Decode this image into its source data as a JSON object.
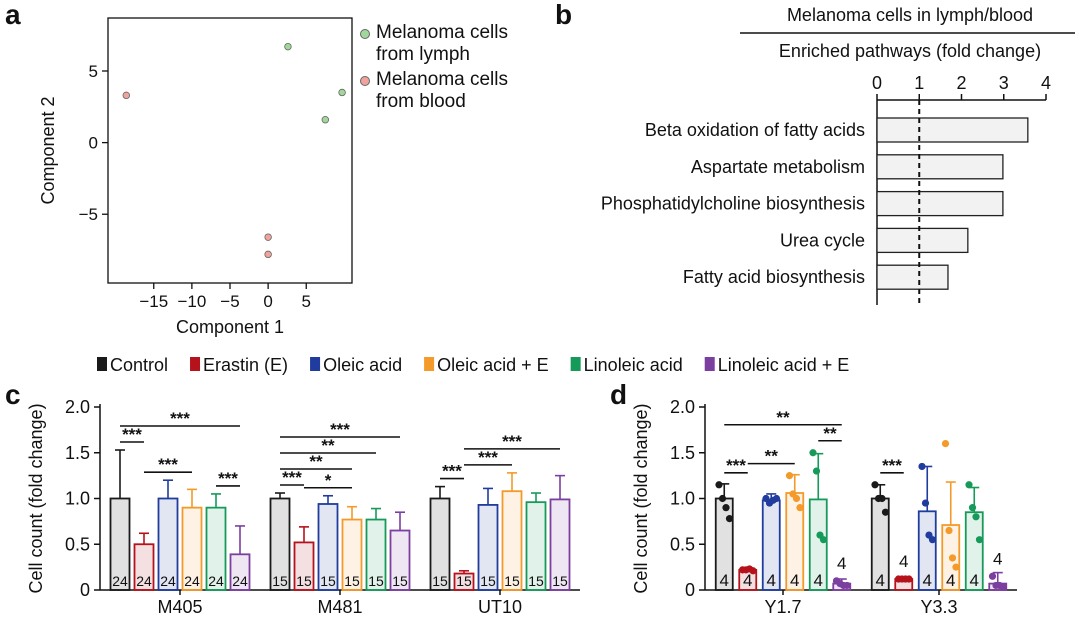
{
  "chart_data": [
    {
      "panel_label": "a",
      "type": "scatter",
      "xlabel": "Component 1",
      "ylabel": "Component 2",
      "xlim": [
        -21,
        11
      ],
      "ylim": [
        -9.8,
        8.7
      ],
      "xticks": [
        {
          "value": -15,
          "label": "−15"
        },
        {
          "value": -10,
          "label": "−10"
        },
        {
          "value": -5,
          "label": "−5"
        },
        0,
        5
      ],
      "yticks": [
        {
          "value": -5,
          "label": "−5"
        },
        0,
        5
      ],
      "series": [
        {
          "name": "Melanoma cells from lymph",
          "color": "#9fd89a",
          "x": [
            2.6,
            9.7,
            7.5
          ],
          "y": [
            6.7,
            3.5,
            1.6
          ]
        },
        {
          "name": "Melanoma cells from blood",
          "color": "#f0a39c",
          "x": [
            -18.6,
            0,
            0
          ],
          "y": [
            3.3,
            -6.6,
            -7.8
          ]
        }
      ]
    },
    {
      "panel_label": "b",
      "type": "bar",
      "orientation": "horizontal",
      "title": "Melanoma cells in lymph/blood",
      "subtitle": "Enriched pathways (fold change)",
      "categories": [
        "Beta oxidation of fatty acids",
        "Aspartate metabolism",
        "Phosphatidylcholine biosynthesis",
        "Urea cycle",
        "Fatty acid biosynthesis"
      ],
      "values": [
        3.57,
        2.98,
        2.98,
        2.15,
        1.68
      ],
      "color": "#f2f2f2",
      "xlim": [
        0,
        4
      ],
      "xticks": [
        0,
        1,
        2,
        3,
        4
      ],
      "reference_line": 1
    },
    {
      "panel_label": "c",
      "type": "bar",
      "ylabel": "Cell count (fold change)",
      "categories": [
        "M405",
        "M481",
        "UT10"
      ],
      "ylim": [
        0,
        2
      ],
      "yticks": [
        0,
        0.5,
        {
          "value": 1,
          "label": "1.0"
        },
        1.5,
        {
          "value": 2,
          "label": "2.0"
        }
      ],
      "series": [
        {
          "name": "Control",
          "color": "#1a1a1a",
          "values": [
            1.0,
            1.0,
            1.0
          ],
          "errors": [
            0.53,
            0.06,
            0.13
          ],
          "n": [
            24,
            15,
            15
          ]
        },
        {
          "name": "Erastin (E)",
          "color": "#b5121b",
          "values": [
            0.5,
            0.52,
            0.18
          ],
          "errors": [
            0.12,
            0.17,
            0.03
          ],
          "n": [
            24,
            15,
            15
          ]
        },
        {
          "name": "Oleic acid",
          "color": "#1f3c9e",
          "values": [
            1.0,
            0.94,
            0.93
          ],
          "errors": [
            0.2,
            0.09,
            0.18
          ],
          "n": [
            24,
            15,
            15
          ]
        },
        {
          "name": "Oleic acid + E",
          "color": "#f39a2b",
          "values": [
            0.9,
            0.77,
            1.08
          ],
          "errors": [
            0.2,
            0.14,
            0.2
          ],
          "n": [
            24,
            15,
            15
          ]
        },
        {
          "name": "Linoleic acid",
          "color": "#169a5a",
          "values": [
            0.9,
            0.77,
            0.96
          ],
          "errors": [
            0.15,
            0.12,
            0.1
          ],
          "n": [
            24,
            15,
            15
          ]
        },
        {
          "name": "Linoleic acid + E",
          "color": "#7b3fa0",
          "values": [
            0.39,
            0.65,
            0.99
          ],
          "errors": [
            0.31,
            0.2,
            0.26
          ],
          "n": [
            24,
            15,
            15
          ]
        }
      ],
      "significance": [
        {
          "group": 0,
          "from": 0,
          "to": 1,
          "label": "***"
        },
        {
          "group": 0,
          "from": 1,
          "to": 3,
          "label": "***"
        },
        {
          "group": 0,
          "from": 4,
          "to": 5,
          "label": "***"
        },
        {
          "group": 0,
          "from": 0,
          "to": 5,
          "label": "***"
        },
        {
          "group": 1,
          "from": 0,
          "to": 1,
          "label": "***"
        },
        {
          "group": 1,
          "from": 1,
          "to": 3,
          "label": "*"
        },
        {
          "group": 1,
          "from": 0,
          "to": 3,
          "label": "**"
        },
        {
          "group": 1,
          "from": 0,
          "to": 4,
          "label": "**"
        },
        {
          "group": 1,
          "from": 0,
          "to": 5,
          "label": "***"
        },
        {
          "group": 2,
          "from": 0,
          "to": 1,
          "label": "***"
        },
        {
          "group": 2,
          "from": 1,
          "to": 3,
          "label": "***"
        },
        {
          "group": 2,
          "from": 1,
          "to": 5,
          "label": "***"
        }
      ]
    },
    {
      "panel_label": "d",
      "type": "bar",
      "ylabel": "Cell count (fold change)",
      "categories": [
        "Y1.7",
        "Y3.3"
      ],
      "ylim": [
        0,
        2
      ],
      "yticks": [
        0,
        0.5,
        {
          "value": 1,
          "label": "1.0"
        },
        1.5,
        {
          "value": 2,
          "label": "2.0"
        }
      ],
      "series": [
        {
          "color": "#1a1a1a",
          "values": [
            1.0,
            1.0
          ],
          "errors": [
            0.16,
            0.15
          ],
          "n": [
            4,
            4
          ],
          "points": [
            [
              1.15,
              1.0,
              0.9,
              0.78
            ],
            [
              1.15,
              1.0,
              1.0,
              0.85
            ]
          ]
        },
        {
          "color": "#b5121b",
          "values": [
            0.22,
            0.12
          ],
          "errors": [
            0.02,
            0.01
          ],
          "n": [
            4,
            4
          ],
          "points": [
            [
              0.22,
              0.22,
              0.23,
              0.21
            ],
            [
              0.12,
              0.12,
              0.12,
              0.12
            ]
          ]
        },
        {
          "color": "#1f3c9e",
          "values": [
            0.98,
            0.86
          ],
          "errors": [
            0.07,
            0.49
          ],
          "n": [
            4,
            4
          ],
          "points": [
            [
              1.0,
              0.95,
              0.98,
              1.0
            ],
            [
              1.35,
              0.95,
              0.6,
              0.55
            ]
          ]
        },
        {
          "color": "#f39a2b",
          "values": [
            1.06,
            0.71
          ],
          "errors": [
            0.2,
            0.47
          ],
          "n": [
            4,
            4
          ],
          "points": [
            [
              1.25,
              1.05,
              1.0,
              0.9
            ],
            [
              1.6,
              0.65,
              0.35,
              0.25
            ]
          ]
        },
        {
          "color": "#169a5a",
          "values": [
            0.99,
            0.85
          ],
          "errors": [
            0.5,
            0.27
          ],
          "n": [
            4,
            4
          ],
          "points": [
            [
              1.5,
              1.3,
              0.6,
              0.55
            ],
            [
              1.15,
              0.9,
              0.8,
              0.55
            ]
          ]
        },
        {
          "color": "#7b3fa0",
          "values": [
            0.07,
            0.07
          ],
          "errors": [
            0.05,
            0.12
          ],
          "n": [
            4,
            4
          ],
          "points": [
            [
              0.1,
              0.07,
              0.05,
              0.05
            ],
            [
              0.15,
              0.05,
              0.05,
              0.03
            ]
          ]
        }
      ],
      "significance": [
        {
          "group": 0,
          "from": 0,
          "to": 1,
          "label": "***"
        },
        {
          "group": 0,
          "from": 1,
          "to": 3,
          "label": "**"
        },
        {
          "group": 0,
          "from": 4,
          "to": 5,
          "label": "**"
        },
        {
          "group": 0,
          "from": 0,
          "to": 5,
          "label": "**"
        },
        {
          "group": 1,
          "from": 0,
          "to": 1,
          "label": "***"
        }
      ]
    }
  ]
}
